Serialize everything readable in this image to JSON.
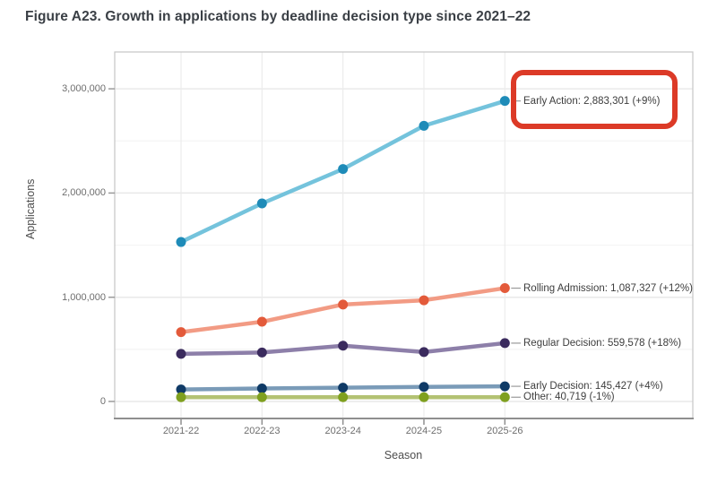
{
  "figure_title": "Figure A23. Growth in applications by deadline decision type since 2021–22",
  "chart_data": {
    "type": "line",
    "title": "Figure A23. Growth in applications by deadline decision type since 2021–22",
    "xlabel": "Season",
    "ylabel": "Applications",
    "categories": [
      "2021-22",
      "2022-23",
      "2023-24",
      "2024-25",
      "2025-26"
    ],
    "y_ticks": [
      0,
      1000000,
      2000000,
      3000000
    ],
    "y_tick_labels": [
      "0",
      "1,000,000",
      "2,000,000",
      "3,000,000"
    ],
    "y_minor_ticks": [
      500000,
      1500000,
      2500000
    ],
    "ylim": [
      0,
      3350000
    ],
    "grid": true,
    "legend_position": "direct-end-labels",
    "series": [
      {
        "name": "Early Action",
        "values": [
          1530000,
          1900000,
          2230000,
          2645000,
          2883301
        ],
        "end_label": "Early Action: 2,883,301 (+9%)",
        "line_color": "#74c3dc",
        "point_color": "#1e8bb8",
        "highlighted": true
      },
      {
        "name": "Rolling Admission",
        "values": [
          665000,
          765000,
          930000,
          971000,
          1087327
        ],
        "end_label": "Rolling Admission: 1,087,327 (+12%)",
        "line_color": "#f29b84",
        "point_color": "#e35a3a",
        "highlighted": false
      },
      {
        "name": "Regular Decision",
        "values": [
          457000,
          470000,
          535000,
          474000,
          559578
        ],
        "end_label": "Regular Decision: 559,578 (+18%)",
        "line_color": "#8d7fa9",
        "point_color": "#3b2b5e",
        "highlighted": false
      },
      {
        "name": "Early Decision",
        "values": [
          115000,
          125000,
          132000,
          139800,
          145427
        ],
        "end_label": "Early Decision: 145,427 (+4%)",
        "line_color": "#7a9bb8",
        "point_color": "#0f3a66",
        "highlighted": false
      },
      {
        "name": "Other",
        "values": [
          41000,
          41200,
          41100,
          41130,
          40719
        ],
        "end_label": "Other: 40,719 (-1%)",
        "line_color": "#b3c273",
        "point_color": "#7fa01f",
        "highlighted": false
      }
    ],
    "annotation": {
      "type": "highlight-box",
      "target_series": "Early Action",
      "color": "#dc3a27"
    }
  }
}
